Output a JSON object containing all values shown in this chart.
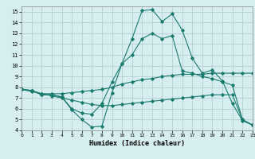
{
  "xlabel": "Humidex (Indice chaleur)",
  "x": [
    0,
    1,
    2,
    3,
    4,
    5,
    6,
    7,
    8,
    9,
    10,
    11,
    12,
    13,
    14,
    15,
    16,
    17,
    18,
    19,
    20,
    21,
    22,
    23
  ],
  "line1": [
    7.8,
    7.7,
    7.3,
    7.3,
    7.1,
    5.9,
    5.0,
    4.3,
    4.4,
    7.5,
    10.2,
    12.5,
    15.1,
    15.2,
    14.1,
    14.8,
    13.3,
    10.7,
    9.3,
    9.6,
    8.6,
    6.5,
    4.9,
    4.5
  ],
  "line2": [
    7.8,
    7.7,
    7.3,
    7.3,
    7.1,
    6.0,
    5.6,
    5.5,
    6.5,
    8.5,
    10.2,
    11.0,
    12.5,
    13.0,
    12.5,
    12.8,
    9.5,
    9.3,
    9.0,
    8.8,
    8.5,
    8.2,
    5.0,
    4.5
  ],
  "line3": [
    7.8,
    7.7,
    7.4,
    7.4,
    7.4,
    7.5,
    7.6,
    7.7,
    7.8,
    8.0,
    8.3,
    8.5,
    8.7,
    8.8,
    9.0,
    9.1,
    9.2,
    9.2,
    9.2,
    9.3,
    9.3,
    9.3,
    9.3,
    9.3
  ],
  "line4": [
    7.8,
    7.6,
    7.4,
    7.2,
    7.0,
    6.8,
    6.6,
    6.4,
    6.3,
    6.3,
    6.4,
    6.5,
    6.6,
    6.7,
    6.8,
    6.9,
    7.0,
    7.1,
    7.2,
    7.3,
    7.3,
    7.3,
    5.0,
    4.5
  ],
  "line_color": "#1a7a6e",
  "bg_color": "#d6eef0",
  "grid_color": "#adc8cc",
  "xlim": [
    0,
    23
  ],
  "ylim": [
    4,
    15.5
  ],
  "yticks": [
    4,
    5,
    6,
    7,
    8,
    9,
    10,
    11,
    12,
    13,
    14,
    15
  ],
  "xticks": [
    0,
    1,
    2,
    3,
    4,
    5,
    6,
    7,
    8,
    9,
    10,
    11,
    12,
    13,
    14,
    15,
    16,
    17,
    18,
    19,
    20,
    21,
    22,
    23
  ]
}
